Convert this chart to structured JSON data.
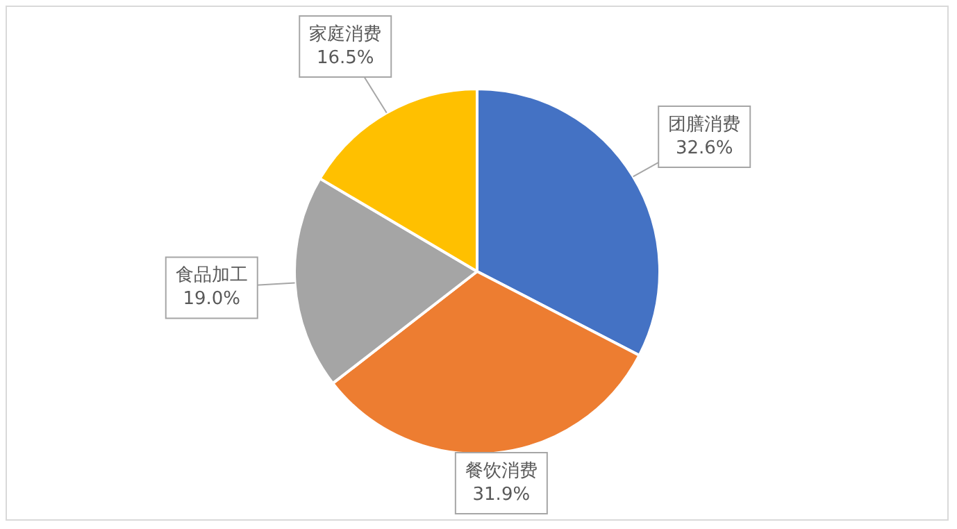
{
  "chart_data": {
    "type": "pie",
    "categories": [
      "团膳消费",
      "餐饮消费",
      "食品加工",
      "家庭消费"
    ],
    "values": [
      32.6,
      31.9,
      19.0,
      16.5
    ],
    "colors": [
      "#4472c4",
      "#ed7d31",
      "#a5a5a5",
      "#ffc000"
    ],
    "value_labels": [
      "32.6%",
      "31.9%",
      "19.0%",
      "16.5%"
    ],
    "legend": false
  }
}
